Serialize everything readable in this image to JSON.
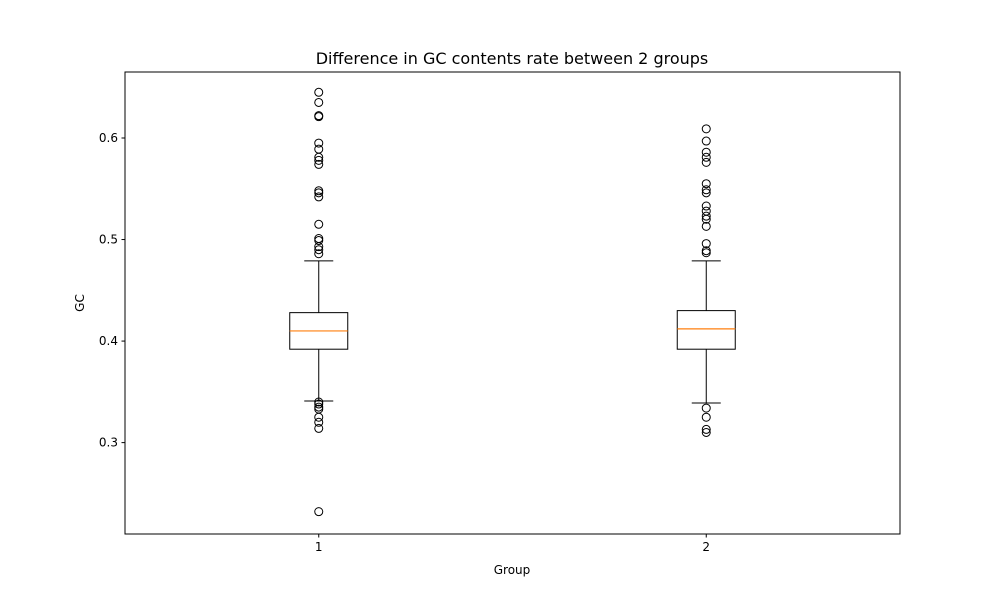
{
  "chart_data": {
    "type": "box",
    "title": "Difference in GC contents rate between 2 groups",
    "xlabel": "Group",
    "ylabel": "GC",
    "categories": [
      "1",
      "2"
    ],
    "ylim": [
      0.21,
      0.665
    ],
    "yticks": [
      0.3,
      0.4,
      0.5,
      0.6
    ],
    "ytick_labels": [
      "0.3",
      "0.4",
      "0.5",
      "0.6"
    ],
    "grid": false,
    "colors": {
      "box": "#000000",
      "median": "#ff7f0e",
      "outlier": "#000000"
    },
    "boxes": [
      {
        "category": "1",
        "whisker_low": 0.341,
        "q1": 0.392,
        "median": 0.41,
        "q3": 0.428,
        "whisker_high": 0.479,
        "outliers": [
          0.645,
          0.635,
          0.622,
          0.621,
          0.595,
          0.589,
          0.581,
          0.578,
          0.574,
          0.548,
          0.546,
          0.542,
          0.515,
          0.501,
          0.499,
          0.493,
          0.49,
          0.486,
          0.34,
          0.338,
          0.335,
          0.333,
          0.325,
          0.32,
          0.314,
          0.232
        ]
      },
      {
        "category": "2",
        "whisker_low": 0.339,
        "q1": 0.392,
        "median": 0.412,
        "q3": 0.43,
        "whisker_high": 0.479,
        "outliers": [
          0.609,
          0.597,
          0.586,
          0.581,
          0.576,
          0.555,
          0.549,
          0.546,
          0.533,
          0.528,
          0.523,
          0.52,
          0.513,
          0.496,
          0.489,
          0.487,
          0.334,
          0.325,
          0.313,
          0.31
        ]
      }
    ]
  }
}
